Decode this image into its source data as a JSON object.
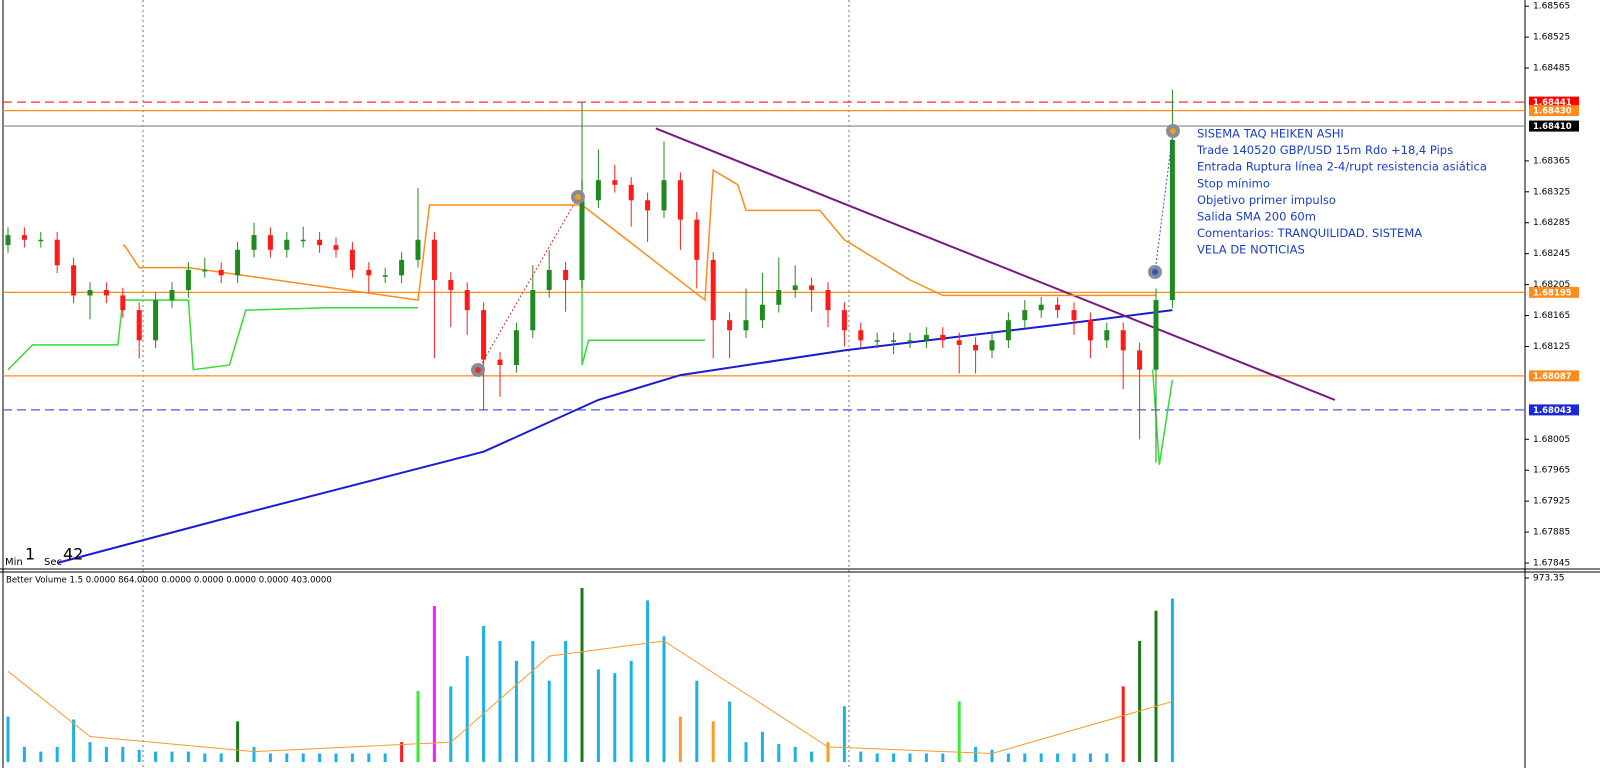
{
  "chart_data": [
    {
      "type": "candlestick",
      "up_color": "#1f8a1f",
      "down_color": "#ff1a1a",
      "ylim": [
        1.67836,
        1.68573
      ],
      "yticks": [
        1.68565,
        1.68525,
        1.68485,
        1.68365,
        1.68325,
        1.68285,
        1.68245,
        1.68205,
        1.68165,
        1.68125,
        1.68005,
        1.67965,
        1.67925,
        1.67885,
        1.67845
      ],
      "levels": [
        {
          "value": 1.68441,
          "color": "#ff3030",
          "label_color": "#ff0000",
          "style": "dashed"
        },
        {
          "value": 1.6843,
          "label": "1.68430",
          "color": "#ff8c1a",
          "label_color": "#ff8c1a",
          "style": "solid"
        },
        {
          "value": 1.6841,
          "label": "1.68410",
          "color": "#9a9a9a",
          "label_color": "#000000",
          "style": "solid"
        },
        {
          "value": 1.68195,
          "color": "#ff8c1a",
          "label_color": "#ff8c1a",
          "style": "solid"
        },
        {
          "value": 1.68087,
          "color": "#ff8c1a",
          "label_color": "#ff8c1a",
          "style": "solid"
        },
        {
          "value": 1.68043,
          "color": "#4a5ae8",
          "label_color": "#1a28d8",
          "style": "dashed"
        }
      ],
      "ohlc": [
        [
          1.68256,
          1.68279,
          1.68246,
          1.68269
        ],
        [
          1.68269,
          1.68279,
          1.68253,
          1.68263
        ],
        [
          1.68263,
          1.68273,
          1.68253,
          1.68263
        ],
        [
          1.68263,
          1.68273,
          1.6822,
          1.6823
        ],
        [
          1.6823,
          1.6824,
          1.68181,
          1.68191
        ],
        [
          1.68191,
          1.68208,
          1.6816,
          1.68198
        ],
        [
          1.68198,
          1.68208,
          1.68181,
          1.68191
        ],
        [
          1.68191,
          1.68201,
          1.68162,
          1.68172
        ],
        [
          1.68172,
          1.68182,
          1.6811,
          1.68133
        ],
        [
          1.68133,
          1.68195,
          1.68123,
          1.68185
        ],
        [
          1.68185,
          1.68208,
          1.68175,
          1.68198
        ],
        [
          1.68198,
          1.68234,
          1.68188,
          1.68224
        ],
        [
          1.68224,
          1.6824,
          1.68214,
          1.68224
        ],
        [
          1.68224,
          1.68234,
          1.68207,
          1.68217
        ],
        [
          1.68217,
          1.6826,
          1.68207,
          1.6825
        ],
        [
          1.6825,
          1.68285,
          1.6824,
          1.68269
        ],
        [
          1.68269,
          1.68279,
          1.6824,
          1.6825
        ],
        [
          1.6825,
          1.68273,
          1.6824,
          1.68263
        ],
        [
          1.68263,
          1.6828,
          1.68253,
          1.68263
        ],
        [
          1.68263,
          1.68273,
          1.68246,
          1.68256
        ],
        [
          1.68256,
          1.68266,
          1.6824,
          1.6825
        ],
        [
          1.6825,
          1.6826,
          1.68214,
          1.68224
        ],
        [
          1.68224,
          1.68234,
          1.68195,
          1.68217
        ],
        [
          1.68217,
          1.68227,
          1.68207,
          1.68217
        ],
        [
          1.68217,
          1.68247,
          1.68207,
          1.68237
        ],
        [
          1.68237,
          1.6833,
          1.68227,
          1.68263
        ],
        [
          1.68263,
          1.68273,
          1.6811,
          1.68211
        ],
        [
          1.68211,
          1.68221,
          1.6815,
          1.68198
        ],
        [
          1.68198,
          1.68208,
          1.6814,
          1.68172
        ],
        [
          1.68172,
          1.68182,
          1.68043,
          1.68108
        ],
        [
          1.68108,
          1.68118,
          1.6806,
          1.68101
        ],
        [
          1.68101,
          1.68156,
          1.68091,
          1.68146
        ],
        [
          1.68146,
          1.6823,
          1.68136,
          1.68198
        ],
        [
          1.68198,
          1.6825,
          1.68188,
          1.68224
        ],
        [
          1.68224,
          1.68234,
          1.6817,
          1.68211
        ],
        [
          1.68211,
          1.68441,
          1.68201,
          1.68314
        ],
        [
          1.68314,
          1.6838,
          1.68304,
          1.6834
        ],
        [
          1.6834,
          1.6836,
          1.68324,
          1.68334
        ],
        [
          1.68334,
          1.68344,
          1.6828,
          1.68314
        ],
        [
          1.68314,
          1.68324,
          1.6826,
          1.68301
        ],
        [
          1.68301,
          1.6839,
          1.68291,
          1.6834
        ],
        [
          1.6834,
          1.6835,
          1.6825,
          1.68289
        ],
        [
          1.68289,
          1.68299,
          1.682,
          1.68237
        ],
        [
          1.68237,
          1.68247,
          1.6811,
          1.68159
        ],
        [
          1.68159,
          1.68169,
          1.6811,
          1.68146
        ],
        [
          1.68146,
          1.682,
          1.68136,
          1.68159
        ],
        [
          1.68159,
          1.6822,
          1.68149,
          1.68179
        ],
        [
          1.68179,
          1.6824,
          1.68169,
          1.68198
        ],
        [
          1.68198,
          1.6823,
          1.68188,
          1.68204
        ],
        [
          1.68204,
          1.68214,
          1.6817,
          1.68198
        ],
        [
          1.68198,
          1.68208,
          1.6815,
          1.68172
        ],
        [
          1.68172,
          1.68182,
          1.68125,
          1.68146
        ],
        [
          1.68146,
          1.68156,
          1.68123,
          1.68133
        ],
        [
          1.68133,
          1.68143,
          1.68123,
          1.68133
        ],
        [
          1.68133,
          1.68143,
          1.68115,
          1.68133
        ],
        [
          1.68133,
          1.68143,
          1.68123,
          1.68133
        ],
        [
          1.68133,
          1.6815,
          1.68123,
          1.6814
        ],
        [
          1.6814,
          1.6815,
          1.68123,
          1.68133
        ],
        [
          1.68133,
          1.68143,
          1.6809,
          1.68127
        ],
        [
          1.68127,
          1.68137,
          1.6809,
          1.6812
        ],
        [
          1.6812,
          1.68143,
          1.6811,
          1.68133
        ],
        [
          1.68133,
          1.68169,
          1.68123,
          1.68159
        ],
        [
          1.68159,
          1.68185,
          1.68149,
          1.68172
        ],
        [
          1.68172,
          1.68189,
          1.68162,
          1.68179
        ],
        [
          1.68179,
          1.68189,
          1.68162,
          1.68172
        ],
        [
          1.68172,
          1.68182,
          1.6814,
          1.68159
        ],
        [
          1.68159,
          1.68169,
          1.6811,
          1.68133
        ],
        [
          1.68133,
          1.68156,
          1.68123,
          1.68146
        ],
        [
          1.68146,
          1.68156,
          1.6807,
          1.6812
        ],
        [
          1.6812,
          1.6813,
          1.68005,
          1.68095
        ],
        [
          1.68095,
          1.682,
          1.67975,
          1.68185
        ],
        [
          1.68185,
          1.68457,
          1.68175,
          1.68392
        ]
      ],
      "series": [
        {
          "color": "#1a1ad8",
          "width": 2,
          "x": [
            3,
            14,
            29,
            36,
            41,
            51,
            64,
            71
          ],
          "values": [
            1.67845,
            1.67907,
            1.67989,
            1.68056,
            1.68088,
            1.6812,
            1.68153,
            1.68172
          ]
        },
        {
          "color": "#7a1a7a",
          "width": 2,
          "x": [
            39.5,
            80.9
          ],
          "values": [
            1.68407,
            1.68056
          ]
        },
        {
          "color": "#ff8c1a",
          "width": 1.5,
          "x": [
            7,
            7.1,
            8,
            11,
            25,
            25.7,
            34,
            35,
            42.5,
            43,
            44.5,
            45,
            49.5,
            51,
            55,
            57,
            70
          ],
          "values": [
            1.68256,
            1.68256,
            1.68227,
            1.68227,
            1.68185,
            1.68308,
            1.68308,
            1.68308,
            1.68185,
            1.68353,
            1.68334,
            1.68301,
            1.68301,
            1.68263,
            1.68211,
            1.68191,
            1.68191
          ]
        },
        {
          "color": "#33dd33",
          "width": 1.5,
          "x": [
            0,
            1.5,
            6.7,
            7,
            11,
            11.3,
            13.5,
            14.5,
            19.5,
            25
          ],
          "values": [
            1.68095,
            1.68127,
            1.68127,
            1.68185,
            1.68185,
            1.68095,
            1.68101,
            1.68172,
            1.68175,
            1.68175
          ]
        },
        {
          "color": "#33dd33",
          "width": 1.5,
          "x": [
            35,
            35,
            35.4,
            42.5
          ],
          "values": [
            1.6834,
            1.68101,
            1.68133,
            1.68133
          ]
        },
        {
          "color": "#33dd33",
          "width": 1.5,
          "x": [
            69.8,
            70.2,
            71
          ],
          "values": [
            1.68095,
            1.67972,
            1.68082
          ]
        }
      ],
      "timer": {
        "min_label": "Min",
        "min": 1,
        "sec_label": "Sec",
        "sec": 42
      },
      "annotation": [
        "SISEMA TAQ HEIKEN ASHI",
        "Trade 140520 GBP/USD 15m Rdo +18,4 Pips",
        "Entrada Ruptura línea 2-4/rupt resistencia asiática",
        "Stop mínimo",
        "Objetivo primer impulso",
        "Salida SMA 200 60m",
        "Comentarios: TRANQUILIDAD. SISTEMA",
        "VELA DE NOTICIAS"
      ]
    },
    {
      "type": "bar",
      "title": "Better Volume 1.5 0.0000 864.0000 0.0000 0.0000 0.0000 0.0000 403.0000",
      "ylim": [
        0,
        973.35
      ],
      "yticks": [
        973.35
      ],
      "values": [
        240,
        80,
        55,
        80,
        225,
        105,
        80,
        80,
        65,
        55,
        55,
        55,
        45,
        45,
        215,
        80,
        45,
        45,
        45,
        45,
        45,
        45,
        45,
        45,
        105,
        375,
        825,
        400,
        560,
        720,
        640,
        535,
        640,
        430,
        640,
        920,
        490,
        470,
        535,
        855,
        665,
        240,
        430,
        215,
        320,
        105,
        160,
        95,
        80,
        55,
        105,
        295,
        55,
        45,
        45,
        45,
        45,
        45,
        320,
        80,
        65,
        45,
        45,
        45,
        45,
        45,
        45,
        45,
        400,
        640,
        800,
        865
      ],
      "colors": [
        "#1ab0e8",
        "#1ab0e8",
        "#1ab0e8",
        "#1ab0e8",
        "#1ab0e8",
        "#1ab0e8",
        "#1ab0e8",
        "#1ab0e8",
        "#1ab0e8",
        "#1ab0e8",
        "#1ab0e8",
        "#1ab0e8",
        "#1ab0e8",
        "#1ab0e8",
        "#1a7a1a",
        "#1ab0e8",
        "#1ab0e8",
        "#1ab0e8",
        "#1ab0e8",
        "#1ab0e8",
        "#1ab0e8",
        "#1ab0e8",
        "#1ab0e8",
        "#1ab0e8",
        "#ff1a1a",
        "#33ee33",
        "#ff1aff",
        "#1ab0e8",
        "#1ab0e8",
        "#1ab0e8",
        "#1ab0e8",
        "#1ab0e8",
        "#1ab0e8",
        "#1ab0e8",
        "#1ab0e8",
        "#1a7a1a",
        "#1ab0e8",
        "#1ab0e8",
        "#1ab0e8",
        "#1ab0e8",
        "#1ab0e8",
        "#ff9a2a",
        "#1ab0e8",
        "#ff9a2a",
        "#1ab0e8",
        "#1ab0e8",
        "#1ab0e8",
        "#1ab0e8",
        "#1ab0e8",
        "#1ab0e8",
        "#ff9a2a",
        "#1ab0e8",
        "#1ab0e8",
        "#1ab0e8",
        "#1ab0e8",
        "#1ab0e8",
        "#1ab0e8",
        "#1ab0e8",
        "#33ee33",
        "#1ab0e8",
        "#1ab0e8",
        "#1ab0e8",
        "#1ab0e8",
        "#1ab0e8",
        "#1ab0e8",
        "#1ab0e8",
        "#1ab0e8",
        "#1ab0e8",
        "#ff1a1a",
        "#1a7a1a",
        "#1a7a1a",
        "#1ab0e8"
      ],
      "series": [
        {
          "color": "#ff9a2a",
          "width": 1,
          "x": [
            0,
            5,
            15,
            27,
            33,
            40,
            50,
            60,
            71
          ],
          "values": [
            480,
            135,
            55,
            105,
            560,
            640,
            80,
            45,
            320
          ]
        }
      ]
    }
  ]
}
